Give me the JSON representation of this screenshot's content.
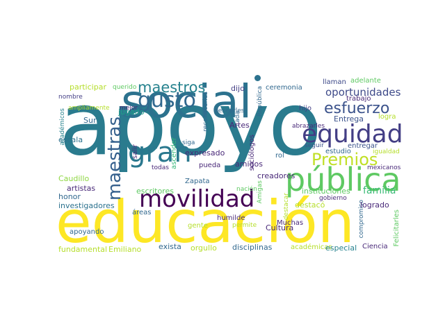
{
  "colors": {
    "yellow": "#fde725",
    "lime": "#b5de2b",
    "green": "#6ece58",
    "green2": "#35b779",
    "teal": "#1f9e89",
    "teal2": "#26828e",
    "blue": "#31688e",
    "indigo": "#3e4989",
    "purple": "#482878",
    "dark": "#440154"
  },
  "words": {
    "apoyo": "apoyo",
    "educacion": "educación",
    "social": "social",
    "publica": "pública",
    "equidad": "equidad",
    "movilidad": "movilidad",
    "maestros": "maestros",
    "gusto": "gusto",
    "maestras": "maestras",
    "gran": "gran",
    "premios": "Premios",
    "esfuerzo": "esfuerzo",
    "oportunidades": "oportunidades",
    "familia": "familia",
    "participar": "participar",
    "querido": "querido",
    "nombre": "nombre",
    "ampliamente": "ampliamente",
    "mejor": "mejor",
    "jugado": "jugado",
    "academicos_v": "académicos",
    "escala": "escala",
    "sur": "Sur",
    "caudillo": "Caudillo",
    "artistas": "artistas",
    "honor": "honor",
    "investigadores": "investigadores",
    "apoyando": "apoyando",
    "fundamental": "fundamental",
    "emiliano": "Emiliano",
    "exista": "exista",
    "orgullo": "orgullo",
    "disciplinas": "disciplinas",
    "academicas": "académicas",
    "especial": "especial",
    "ciencia": "Ciencia",
    "felicitarles": "Felicitarles",
    "compromiso": "compromiso",
    "mexicanos": "mexicanos",
    "igualdad": "igualdad",
    "logra": "logra",
    "entrega": "Entrega",
    "trabajo": "trabajo",
    "llaman": "llaman",
    "adelante": "adelante",
    "ceremonia": "ceremonia",
    "dijo": "dijo",
    "republica": "República",
    "reconocerles": "reconocerles",
    "desearles": "desearles",
    "hijo": "hijo",
    "cada": "cada",
    "artes": "Artes",
    "abrazarles": "abrazarles",
    "seguir": "seguir",
    "estudio": "estudio",
    "entregar": "entregar",
    "sociologos": "sociólogos",
    "rol": "rol",
    "salir": "salir",
    "ascender": "ascender",
    "siga": "siga",
    "todas": "todas",
    "pueda": "pueda",
    "expresado": "expresado",
    "amigos": "amigos",
    "creadores": "creadores",
    "escritores": "escritores",
    "zapata": "Zapata",
    "cultura": "Cultura",
    "amigas": "Amigas",
    "nacion": "nación",
    "instituciones": "instituciones",
    "gobierno": "gobierno",
    "areas": "áreas",
    "gente": "gente",
    "humilde": "humilde",
    "permite": "permite",
    "destacar": "destacar",
    "destaco": "destacó",
    "logrado": "logrado",
    "muchas": "Muchas"
  }
}
